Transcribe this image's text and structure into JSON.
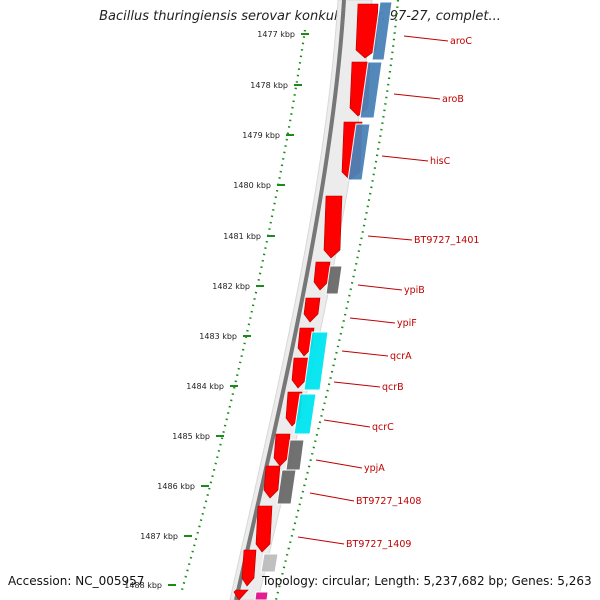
{
  "title": "Bacillus thuringiensis serovar konkukian str. 97-27, complet...",
  "accession": "Accession: NC_005957",
  "topology": "Topology: circular; Length: 5,237,682 bp; Genes: 5,263",
  "kbp_ticks": [
    "1477 kbp",
    "1478 kbp",
    "1479 kbp",
    "1480 kbp",
    "1481 kbp",
    "1482 kbp",
    "1483 kbp",
    "1484 kbp",
    "1485 kbp",
    "1486 kbp",
    "1487 kbp",
    "1488 kbp"
  ],
  "gene_labels": [
    "aroC",
    "aroB",
    "hisC",
    "BT9727_1401",
    "ypiB",
    "ypiF",
    "qcrA",
    "qcrB",
    "qcrC",
    "ypjA",
    "BT9727_1408",
    "BT9727_1409"
  ],
  "colors": {
    "cds": "#ff0000",
    "blue_track": "#4a82b8",
    "cyan_track": "#00e5f0",
    "gray_track": "#6a6a6a",
    "light_gray_track": "#bdbdbd",
    "magenta_track": "#e0148c",
    "backbone": "#777777",
    "tick_dots": "#1e8a1e",
    "label_text": "#c00000"
  }
}
